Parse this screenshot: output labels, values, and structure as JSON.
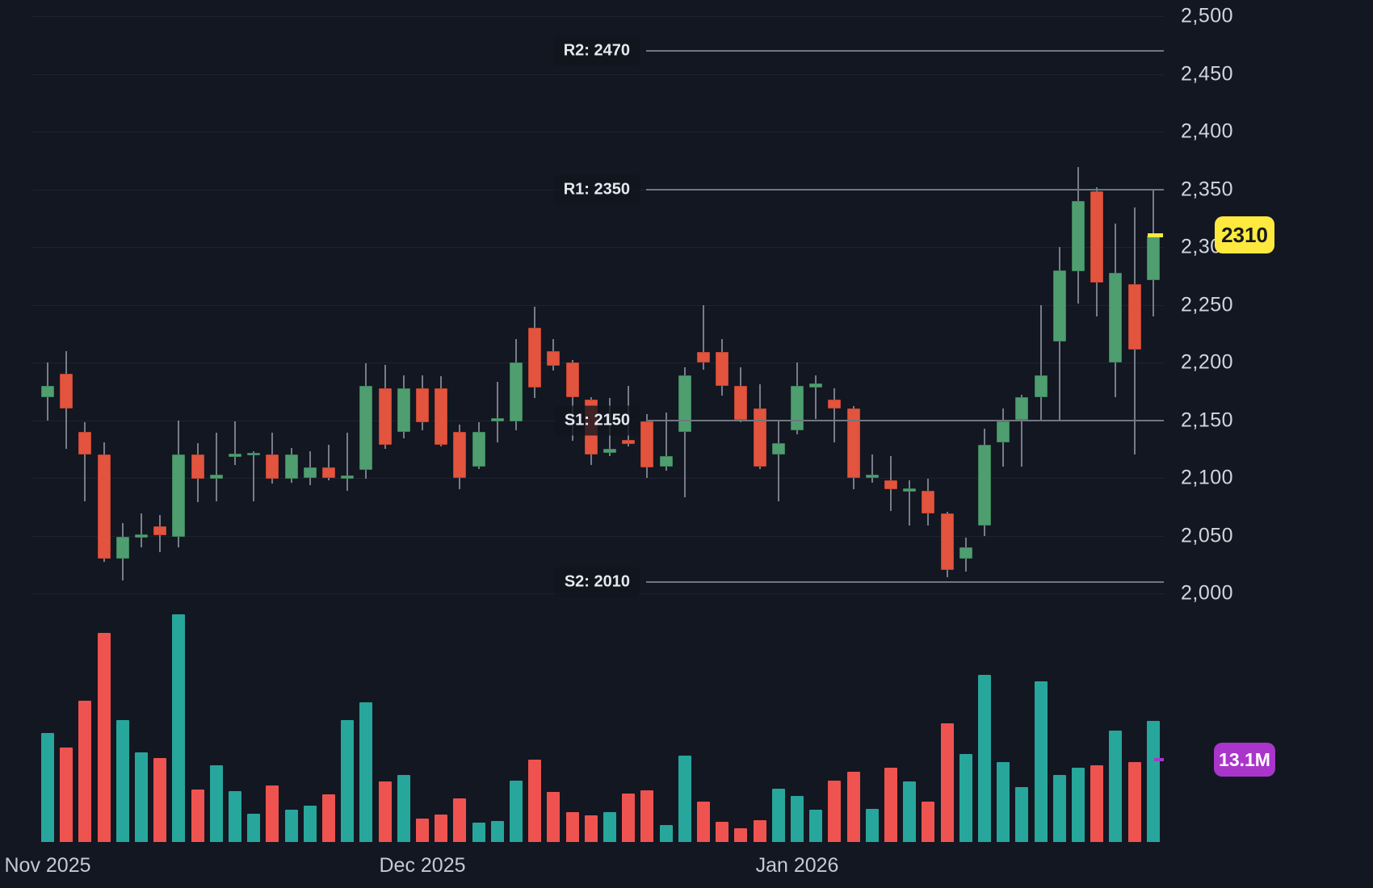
{
  "colors": {
    "background": "#131722",
    "candle_up": "#4f9e70",
    "candle_down": "#e2543e",
    "wick": "#767d89",
    "volume_up": "#27a69b",
    "volume_down": "#ef5350",
    "level_line": "#717680",
    "grid": "#1e2330",
    "axis_text": "#d1d4dc",
    "price_badge_bg": "#ffe93e",
    "price_badge_text": "#15191f",
    "volume_badge_bg": "#a935cb",
    "volume_badge_text": "#ffffff"
  },
  "chart_data": {
    "type": "candlestick_with_volume",
    "price_axis": {
      "side": "right",
      "range": [
        2000,
        2500
      ],
      "grid": true,
      "ticks": [
        {
          "label": "2,500",
          "value": 2500
        },
        {
          "label": "2,450",
          "value": 2450
        },
        {
          "label": "2,400",
          "value": 2400
        },
        {
          "label": "2,350",
          "value": 2350
        },
        {
          "label": "2,300",
          "value": 2300
        },
        {
          "label": "2,250",
          "value": 2250
        },
        {
          "label": "2,200",
          "value": 2200
        },
        {
          "label": "2,150",
          "value": 2150
        },
        {
          "label": "2,100",
          "value": 2100
        },
        {
          "label": "2,050",
          "value": 2050
        },
        {
          "label": "2,000",
          "value": 2000
        }
      ]
    },
    "x_axis": {
      "month_labels": [
        {
          "label": "Nov 2025",
          "candle_index": 0
        },
        {
          "label": "Dec 2025",
          "candle_index": 20
        },
        {
          "label": "Jan 2026",
          "candle_index": 40
        }
      ]
    },
    "levels": [
      {
        "id": "R2",
        "label": "R2: 2470",
        "value": 2470
      },
      {
        "id": "R1",
        "label": "R1: 2350",
        "value": 2350
      },
      {
        "id": "S1",
        "label": "S1: 2150",
        "value": 2150
      },
      {
        "id": "S2",
        "label": "S2: 2010",
        "value": 2010
      }
    ],
    "last_price": {
      "label": "2310",
      "value": 2310
    },
    "last_volume": {
      "label": "13.1M",
      "value_millions": 13.1
    },
    "candles": {
      "columns": [
        "open",
        "high",
        "low",
        "close",
        "volume_millions"
      ],
      "rows": [
        [
          2170,
          2200,
          2150,
          2180,
          11.8
        ],
        [
          2190,
          2210,
          2125,
          2160,
          10.2
        ],
        [
          2140,
          2148,
          2080,
          2120,
          15.3
        ],
        [
          2120,
          2131,
          2027,
          2030,
          22.6
        ],
        [
          2030,
          2061,
          2011,
          2049,
          13.2
        ],
        [
          2048,
          2069,
          2040,
          2051,
          9.7
        ],
        [
          2058,
          2068,
          2036,
          2050,
          9.1
        ],
        [
          2049,
          2150,
          2040,
          2120,
          24.6
        ],
        [
          2120,
          2130,
          2079,
          2099,
          5.7
        ],
        [
          2099,
          2139,
          2080,
          2103,
          8.3
        ],
        [
          2118,
          2149,
          2111,
          2121,
          5.5
        ],
        [
          2120,
          2123,
          2080,
          2122,
          3.1
        ],
        [
          2120,
          2139,
          2095,
          2099,
          6.1
        ],
        [
          2099,
          2126,
          2096,
          2120,
          3.5
        ],
        [
          2100,
          2123,
          2094,
          2109,
          4.0
        ],
        [
          2109,
          2129,
          2098,
          2100,
          5.2
        ],
        [
          2099,
          2139,
          2089,
          2102,
          13.2
        ],
        [
          2107,
          2199,
          2099,
          2180,
          15.1
        ],
        [
          2178,
          2198,
          2125,
          2129,
          6.6
        ],
        [
          2140,
          2189,
          2134,
          2178,
          7.3
        ],
        [
          2178,
          2189,
          2141,
          2148,
          2.6
        ],
        [
          2178,
          2188,
          2127,
          2129,
          3.0
        ],
        [
          2140,
          2146,
          2090,
          2100,
          4.7
        ],
        [
          2110,
          2148,
          2108,
          2140,
          2.1
        ],
        [
          2149,
          2183,
          2131,
          2152,
          2.3
        ],
        [
          2149,
          2220,
          2141,
          2200,
          6.7
        ],
        [
          2230,
          2248,
          2169,
          2178,
          8.9
        ],
        [
          2210,
          2220,
          2193,
          2197,
          5.4
        ],
        [
          2200,
          2202,
          2132,
          2170,
          3.3
        ],
        [
          2168,
          2170,
          2111,
          2120,
          2.9
        ],
        [
          2122,
          2169,
          2119,
          2125,
          3.3
        ],
        [
          2133,
          2180,
          2127,
          2129,
          5.3
        ],
        [
          2149,
          2155,
          2100,
          2109,
          5.6
        ],
        [
          2110,
          2157,
          2106,
          2119,
          1.9
        ],
        [
          2140,
          2196,
          2083,
          2189,
          9.4
        ],
        [
          2209,
          2250,
          2194,
          2200,
          4.4
        ],
        [
          2209,
          2220,
          2171,
          2180,
          2.2
        ],
        [
          2180,
          2196,
          2148,
          2150,
          1.5
        ],
        [
          2160,
          2181,
          2108,
          2110,
          2.4
        ],
        [
          2120,
          2150,
          2080,
          2130,
          5.8
        ],
        [
          2141,
          2200,
          2138,
          2180,
          5.0
        ],
        [
          2178,
          2189,
          2151,
          2182,
          3.5
        ],
        [
          2168,
          2178,
          2131,
          2160,
          6.7
        ],
        [
          2160,
          2162,
          2090,
          2100,
          7.6
        ],
        [
          2100,
          2120,
          2096,
          2103,
          3.6
        ],
        [
          2098,
          2119,
          2071,
          2090,
          8.1
        ],
        [
          2088,
          2098,
          2059,
          2091,
          6.6
        ],
        [
          2089,
          2099,
          2059,
          2069,
          4.4
        ],
        [
          2069,
          2071,
          2014,
          2020,
          12.9
        ],
        [
          2030,
          2048,
          2019,
          2040,
          9.5
        ],
        [
          2059,
          2143,
          2050,
          2129,
          18.1
        ],
        [
          2131,
          2160,
          2110,
          2149,
          8.7
        ],
        [
          2150,
          2172,
          2110,
          2170,
          6.0
        ],
        [
          2170,
          2250,
          2150,
          2189,
          17.4
        ],
        [
          2218,
          2300,
          2150,
          2280,
          7.3
        ],
        [
          2279,
          2369,
          2251,
          2340,
          8.1
        ],
        [
          2348,
          2352,
          2240,
          2269,
          8.3
        ],
        [
          2200,
          2320,
          2170,
          2278,
          12.1
        ],
        [
          2268,
          2334,
          2120,
          2211,
          8.7
        ],
        [
          2271,
          2350,
          2240,
          2310,
          13.1
        ]
      ]
    }
  }
}
